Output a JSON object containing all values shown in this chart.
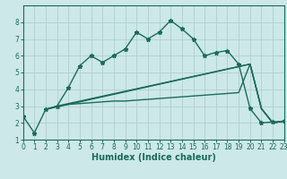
{
  "xlabel": "Humidex (Indice chaleur)",
  "xlim": [
    0,
    23
  ],
  "ylim": [
    1,
    9
  ],
  "yticks": [
    1,
    2,
    3,
    4,
    5,
    6,
    7,
    8
  ],
  "xticks": [
    0,
    1,
    2,
    3,
    4,
    5,
    6,
    7,
    8,
    9,
    10,
    11,
    12,
    13,
    14,
    15,
    16,
    17,
    18,
    19,
    20,
    21,
    22,
    23
  ],
  "bg_color": "#cce8e8",
  "line_color": "#1a6b5a",
  "grid_color": "#b0d0d0",
  "curve1_x": [
    0,
    1,
    2,
    3,
    4,
    5,
    6,
    7,
    8,
    9,
    10,
    11,
    12,
    13,
    14,
    15,
    16,
    17,
    18,
    19,
    20,
    21,
    22,
    23
  ],
  "curve1_y": [
    2.4,
    1.4,
    2.8,
    3.0,
    4.1,
    5.4,
    6.0,
    5.6,
    6.0,
    6.4,
    7.4,
    7.0,
    7.4,
    8.1,
    7.6,
    7.0,
    6.0,
    6.2,
    6.3,
    5.5,
    2.85,
    2.0,
    2.05,
    2.1
  ],
  "curve2_x": [
    2,
    3,
    4,
    5,
    6,
    7,
    8,
    9,
    10,
    11,
    12,
    13,
    14,
    15,
    16,
    17,
    18,
    19,
    20,
    21,
    22,
    23
  ],
  "curve2_y": [
    2.8,
    3.0,
    3.1,
    3.15,
    3.2,
    3.25,
    3.3,
    3.3,
    3.35,
    3.4,
    3.45,
    3.5,
    3.55,
    3.6,
    3.65,
    3.7,
    3.75,
    3.8,
    5.5,
    2.85,
    2.0,
    2.1
  ],
  "diag1_x": [
    3,
    20,
    21,
    22,
    23
  ],
  "diag1_y": [
    3.0,
    5.5,
    2.85,
    2.0,
    2.1
  ],
  "diag2_x": [
    2,
    20,
    21,
    22,
    23
  ],
  "diag2_y": [
    2.8,
    5.5,
    2.85,
    2.0,
    2.1
  ]
}
